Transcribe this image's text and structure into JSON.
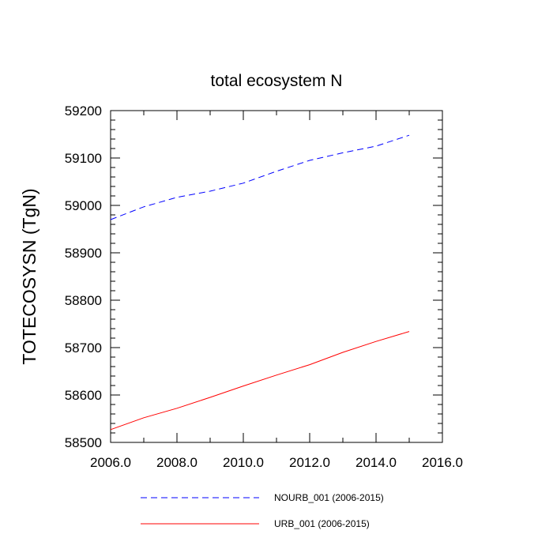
{
  "chart_data": {
    "type": "line",
    "title": "total ecosystem N",
    "xlabel": "",
    "ylabel": "TOTECOSYSN  (TgN)",
    "xlim": [
      2006,
      2016
    ],
    "ylim": [
      58500,
      59200
    ],
    "x_ticks": [
      2006,
      2008,
      2010,
      2012,
      2014,
      2016
    ],
    "x_tick_labels": [
      "2006.0",
      "2008.0",
      "2010.0",
      "2012.0",
      "2014.0",
      "2016.0"
    ],
    "x_minor_step": 1,
    "y_ticks": [
      58500,
      58600,
      58700,
      58800,
      58900,
      59000,
      59100,
      59200
    ],
    "y_tick_labels": [
      "58500",
      "58600",
      "58700",
      "58800",
      "58900",
      "59000",
      "59100",
      "59200"
    ],
    "y_minor_step": 20,
    "x": [
      2006,
      2007,
      2008,
      2009,
      2010,
      2011,
      2012,
      2013,
      2014,
      2015
    ],
    "series": [
      {
        "name": "NOURB_001 (2006-2015)",
        "color": "#0000ff",
        "dash": "dashed",
        "values": [
          58970,
          58997,
          59017,
          59030,
          59047,
          59072,
          59095,
          59111,
          59125,
          59148
        ]
      },
      {
        "name": "URB_001 (2006-2015)",
        "color": "#ff0000",
        "dash": "solid",
        "values": [
          58527,
          58552,
          58572,
          58595,
          58619,
          58642,
          58664,
          58690,
          58713,
          58734
        ]
      }
    ],
    "grid": false,
    "legend_position": "bottom"
  }
}
